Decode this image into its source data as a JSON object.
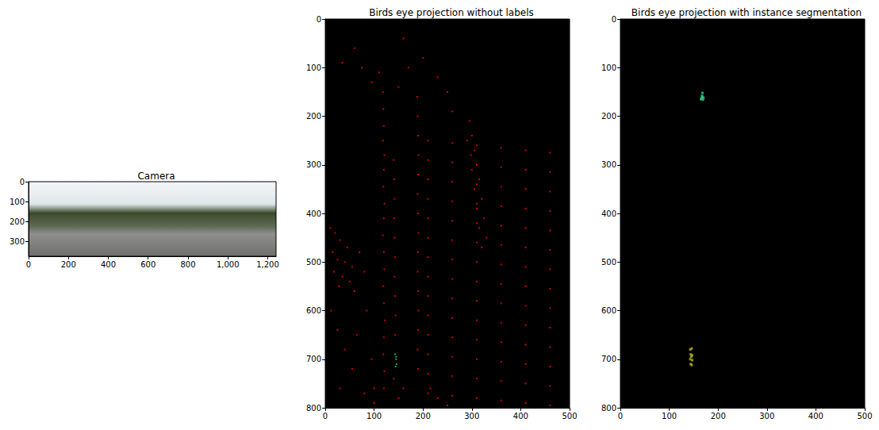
{
  "chart_data": [
    {
      "type": "image",
      "title": "Camera",
      "xlim": [
        0,
        1242
      ],
      "ylim": [
        375,
        0
      ],
      "xticks": [
        0,
        200,
        400,
        600,
        800,
        1000,
        1200
      ],
      "yticks": [
        0,
        100,
        200,
        300
      ]
    },
    {
      "type": "scatter",
      "title": "Birds eye projection without labels",
      "xlim": [
        0,
        500
      ],
      "ylim": [
        800,
        0
      ],
      "xticks": [
        0,
        100,
        200,
        300,
        400,
        500
      ],
      "yticks": [
        0,
        100,
        200,
        300,
        400,
        500,
        600,
        700,
        800
      ],
      "series": [
        {
          "color": "#ff0000",
          "values": [
            [
              118,
              150
            ],
            [
              119,
              185
            ],
            [
              120,
              220
            ],
            [
              118,
              250
            ],
            [
              121,
              280
            ],
            [
              120,
              310
            ],
            [
              119,
              345
            ],
            [
              121,
              380
            ],
            [
              120,
              410
            ],
            [
              118,
              445
            ],
            [
              120,
              480
            ],
            [
              121,
              515
            ],
            [
              119,
              550
            ],
            [
              120,
              585
            ],
            [
              122,
              620
            ],
            [
              120,
              655
            ],
            [
              119,
              690
            ],
            [
              121,
              725
            ],
            [
              120,
              760
            ],
            [
              188,
              160
            ],
            [
              189,
              200
            ],
            [
              190,
              240
            ],
            [
              191,
              280
            ],
            [
              190,
              320
            ],
            [
              189,
              360
            ],
            [
              190,
              400
            ],
            [
              191,
              440
            ],
            [
              190,
              480
            ],
            [
              189,
              520
            ],
            [
              190,
              560
            ],
            [
              191,
              600
            ],
            [
              190,
              640
            ],
            [
              189,
              680
            ],
            [
              190,
              720
            ],
            [
              140,
              290
            ],
            [
              141,
              330
            ],
            [
              142,
              370
            ],
            [
              141,
              410
            ],
            [
              142,
              450
            ],
            [
              143,
              490
            ],
            [
              142,
              530
            ],
            [
              143,
              570
            ],
            [
              144,
              610
            ],
            [
              143,
              650
            ],
            [
              60,
              60
            ],
            [
              75,
              100
            ],
            [
              95,
              130
            ],
            [
              110,
              110
            ],
            [
              160,
              40
            ],
            [
              200,
              80
            ],
            [
              230,
              120
            ],
            [
              250,
              150
            ],
            [
              260,
              190
            ],
            [
              150,
              140
            ],
            [
              170,
              100
            ],
            [
              35,
              90
            ],
            [
              10,
              430
            ],
            [
              20,
              440
            ],
            [
              30,
              455
            ],
            [
              45,
              470
            ],
            [
              15,
              480
            ],
            [
              25,
              495
            ],
            [
              40,
              500
            ],
            [
              55,
              510
            ],
            [
              18,
              520
            ],
            [
              35,
              530
            ],
            [
              50,
              540
            ],
            [
              28,
              550
            ],
            [
              60,
              560
            ],
            [
              70,
              480
            ],
            [
              80,
              520
            ],
            [
              12,
              600
            ],
            [
              25,
              640
            ],
            [
              40,
              680
            ],
            [
              55,
              720
            ],
            [
              30,
              760
            ],
            [
              65,
              650
            ],
            [
              85,
              600
            ],
            [
              95,
              700
            ],
            [
              100,
              760
            ],
            [
              295,
              210
            ],
            [
              300,
              240
            ],
            [
              305,
              270
            ],
            [
              310,
              300
            ],
            [
              300,
              310
            ],
            [
              315,
              330
            ],
            [
              305,
              350
            ],
            [
              320,
              370
            ],
            [
              310,
              390
            ],
            [
              325,
              410
            ],
            [
              315,
              430
            ],
            [
              330,
              450
            ],
            [
              320,
              470
            ],
            [
              290,
              250
            ],
            [
              298,
              280
            ],
            [
              210,
              250
            ],
            [
              260,
              255
            ],
            [
              310,
              260
            ],
            [
              360,
              265
            ],
            [
              410,
              270
            ],
            [
              460,
              275
            ],
            [
              210,
              290
            ],
            [
              260,
              295
            ],
            [
              310,
              300
            ],
            [
              360,
              305
            ],
            [
              410,
              310
            ],
            [
              460,
              315
            ],
            [
              210,
              330
            ],
            [
              260,
              335
            ],
            [
              310,
              340
            ],
            [
              360,
              345
            ],
            [
              410,
              350
            ],
            [
              460,
              355
            ],
            [
              210,
              370
            ],
            [
              260,
              375
            ],
            [
              310,
              380
            ],
            [
              360,
              385
            ],
            [
              410,
              390
            ],
            [
              460,
              395
            ],
            [
              210,
              410
            ],
            [
              260,
              415
            ],
            [
              310,
              420
            ],
            [
              360,
              425
            ],
            [
              410,
              430
            ],
            [
              460,
              435
            ],
            [
              210,
              450
            ],
            [
              260,
              455
            ],
            [
              310,
              460
            ],
            [
              360,
              465
            ],
            [
              410,
              470
            ],
            [
              460,
              475
            ],
            [
              210,
              490
            ],
            [
              260,
              495
            ],
            [
              310,
              500
            ],
            [
              360,
              505
            ],
            [
              410,
              510
            ],
            [
              460,
              515
            ],
            [
              210,
              530
            ],
            [
              260,
              535
            ],
            [
              310,
              540
            ],
            [
              360,
              545
            ],
            [
              410,
              550
            ],
            [
              460,
              555
            ],
            [
              210,
              570
            ],
            [
              260,
              575
            ],
            [
              310,
              580
            ],
            [
              360,
              585
            ],
            [
              410,
              590
            ],
            [
              460,
              595
            ],
            [
              210,
              610
            ],
            [
              260,
              615
            ],
            [
              310,
              620
            ],
            [
              360,
              625
            ],
            [
              410,
              630
            ],
            [
              460,
              635
            ],
            [
              210,
              650
            ],
            [
              260,
              655
            ],
            [
              310,
              660
            ],
            [
              360,
              665
            ],
            [
              410,
              670
            ],
            [
              460,
              675
            ],
            [
              210,
              690
            ],
            [
              260,
              695
            ],
            [
              310,
              700
            ],
            [
              360,
              705
            ],
            [
              410,
              710
            ],
            [
              460,
              715
            ],
            [
              210,
              730
            ],
            [
              260,
              735
            ],
            [
              310,
              740
            ],
            [
              360,
              745
            ],
            [
              410,
              750
            ],
            [
              460,
              755
            ],
            [
              210,
              770
            ],
            [
              260,
              775
            ],
            [
              310,
              780
            ],
            [
              360,
              785
            ],
            [
              410,
              790
            ],
            [
              460,
              795
            ],
            [
              150,
              780
            ],
            [
              160,
              760
            ],
            [
              140,
              740
            ],
            [
              215,
              760
            ],
            [
              230,
              780
            ],
            [
              250,
              795
            ],
            [
              100,
              790
            ],
            [
              80,
              770
            ]
          ]
        },
        {
          "color": "#2ecc71",
          "values": [
            [
              143,
              690
            ],
            [
              145,
              700
            ],
            [
              146,
              710
            ],
            [
              144,
              715
            ],
            [
              145,
              695
            ]
          ]
        }
      ]
    },
    {
      "type": "scatter",
      "title": "Birds eye projection with instance segmentation",
      "xlim": [
        0,
        500
      ],
      "ylim": [
        800,
        0
      ],
      "xticks": [
        0,
        100,
        200,
        300,
        400,
        500
      ],
      "yticks": [
        0,
        100,
        200,
        300,
        400,
        500,
        600,
        700,
        800
      ],
      "series": [
        {
          "color": "#2bd08a",
          "values": [
            [
              165,
              165
            ],
            [
              167,
              158
            ],
            [
              168,
              152
            ],
            [
              170,
              162
            ],
            [
              169,
              166
            ],
            [
              166,
              163
            ],
            [
              168,
              160
            ]
          ]
        },
        {
          "color": "#b5b51e",
          "values": [
            [
              143,
              680
            ],
            [
              146,
              678
            ],
            [
              144,
              690
            ],
            [
              147,
              692
            ],
            [
              143,
              700
            ],
            [
              147,
              702
            ],
            [
              144,
              710
            ],
            [
              146,
              712
            ],
            [
              145,
              695
            ]
          ]
        }
      ]
    }
  ]
}
